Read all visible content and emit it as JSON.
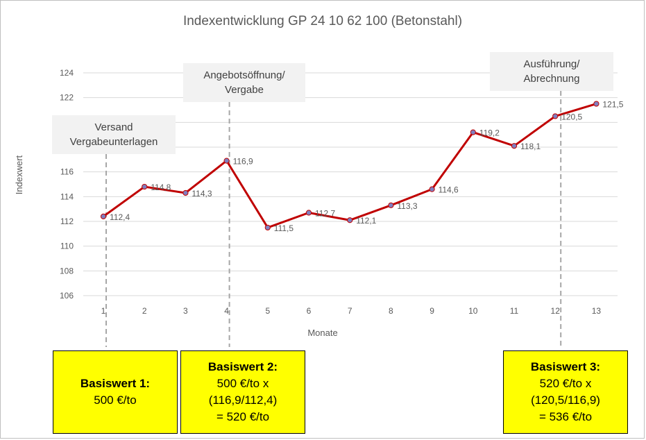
{
  "chart_data": {
    "type": "line",
    "title": "Indexentwicklung GP 24 10 62 100 (Betonstahl)",
    "xlabel": "Monate",
    "ylabel": "Indexwert",
    "ylim": [
      106,
      124
    ],
    "yticks": [
      106,
      108,
      110,
      112,
      114,
      116,
      118,
      120,
      122,
      124
    ],
    "grid": true,
    "x": [
      1,
      2,
      3,
      4,
      5,
      6,
      7,
      8,
      9,
      10,
      11,
      12,
      13
    ],
    "values": [
      112.4,
      114.8,
      114.3,
      116.9,
      111.5,
      112.7,
      112.1,
      113.3,
      114.6,
      119.2,
      118.1,
      120.5,
      121.5
    ],
    "data_labels": [
      "112,4",
      "114,8",
      "114,3",
      "116,9",
      "111,5",
      "112,7",
      "112,1",
      "113,3",
      "114,6",
      "119,2",
      "118,1",
      "120,5",
      "121,5"
    ],
    "colors": {
      "line": "#c00000",
      "marker": "#7f7fbf",
      "grid": "#d9d9d9"
    },
    "annotations": [
      {
        "month": 1,
        "lines": [
          "Versand",
          "Vergabeunterlagen"
        ]
      },
      {
        "month": 4,
        "lines": [
          "Angebotsöffnung/",
          "Vergabe"
        ]
      },
      {
        "month": 12,
        "lines": [
          "Ausführung/",
          "Abrechnung"
        ]
      }
    ]
  },
  "basis": [
    {
      "title": "Basiswert 1:",
      "lines": [
        "500 €/to"
      ]
    },
    {
      "title": "Basiswert 2:",
      "lines": [
        "500 €/to x",
        "(116,9/112,4)",
        "= 520 €/to"
      ]
    },
    {
      "title": "Basiswert 3:",
      "lines": [
        "520 €/to x",
        "(120,5/116,9)",
        "= 536 €/to"
      ]
    }
  ]
}
